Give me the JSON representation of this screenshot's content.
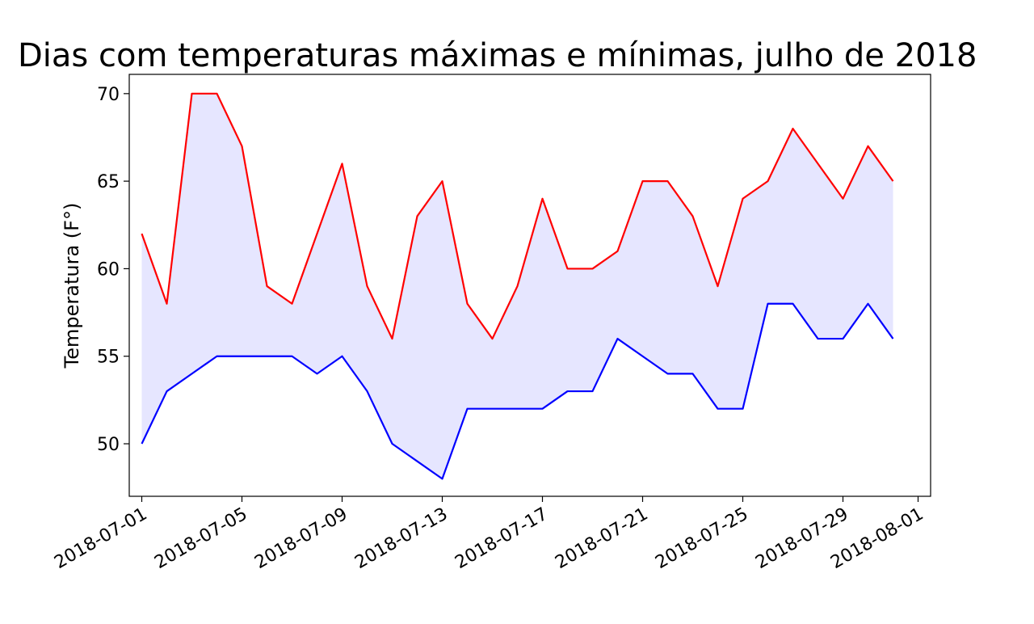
{
  "chart_data": {
    "type": "line",
    "title": "Dias com temperaturas máximas e mínimas, julho de 2018",
    "xlabel": "",
    "ylabel": "Temperatura (F°)",
    "x": [
      "2018-07-01",
      "2018-07-02",
      "2018-07-03",
      "2018-07-04",
      "2018-07-05",
      "2018-07-06",
      "2018-07-07",
      "2018-07-08",
      "2018-07-09",
      "2018-07-10",
      "2018-07-11",
      "2018-07-12",
      "2018-07-13",
      "2018-07-14",
      "2018-07-15",
      "2018-07-16",
      "2018-07-17",
      "2018-07-18",
      "2018-07-19",
      "2018-07-20",
      "2018-07-21",
      "2018-07-22",
      "2018-07-23",
      "2018-07-24",
      "2018-07-25",
      "2018-07-26",
      "2018-07-27",
      "2018-07-28",
      "2018-07-29",
      "2018-07-30",
      "2018-07-31"
    ],
    "series": [
      {
        "color": "#ff0000",
        "values": [
          62,
          58,
          70,
          70,
          67,
          59,
          58,
          62,
          66,
          59,
          56,
          63,
          65,
          58,
          56,
          59,
          64,
          60,
          60,
          61,
          65,
          65,
          63,
          59,
          64,
          65,
          68,
          66,
          64,
          67,
          65
        ]
      },
      {
        "color": "#0000ff",
        "values": [
          50,
          53,
          54,
          55,
          55,
          55,
          55,
          54,
          55,
          53,
          50,
          49,
          48,
          52,
          52,
          52,
          52,
          53,
          53,
          56,
          55,
          54,
          54,
          52,
          52,
          58,
          58,
          56,
          56,
          58,
          56
        ]
      }
    ],
    "fill_between": {
      "color": "#e6e6ff",
      "between": [
        0,
        1
      ]
    },
    "xticks": [
      "2018-07-01",
      "2018-07-05",
      "2018-07-09",
      "2018-07-13",
      "2018-07-17",
      "2018-07-21",
      "2018-07-25",
      "2018-07-29",
      "2018-08-01"
    ],
    "yticks": [
      50,
      55,
      60,
      65,
      70
    ],
    "xlim": [
      "2018-06-29",
      "2018-08-01"
    ],
    "ylim": [
      47,
      71.1
    ],
    "grid": false,
    "legend": "none"
  }
}
